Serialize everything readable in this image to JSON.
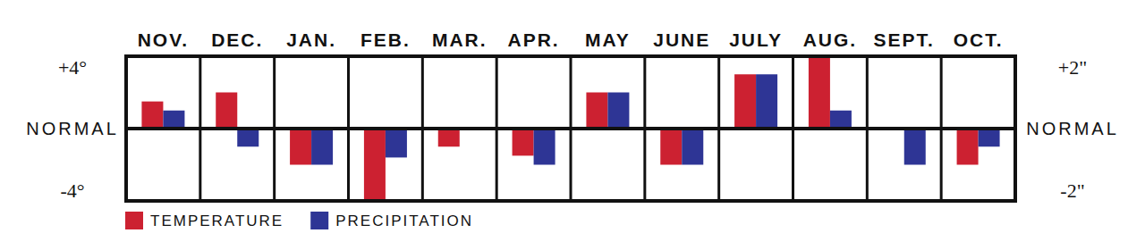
{
  "chart_data": {
    "type": "bar",
    "categories": [
      "NOV.",
      "DEC.",
      "JAN.",
      "FEB.",
      "MAR.",
      "APR.",
      "MAY",
      "JUNE",
      "JULY",
      "AUG.",
      "SEPT.",
      "OCT."
    ],
    "series": [
      {
        "name": "TEMPERATURE",
        "color": "#cc2131",
        "values": [
          1.5,
          2,
          -2,
          -4,
          -1,
          -1.5,
          2,
          -2,
          3,
          4,
          0,
          -2
        ]
      },
      {
        "name": "PRECIPITATION",
        "color": "#2e3595",
        "axis": "y2",
        "values": [
          0.5,
          -0.5,
          -1,
          -0.8,
          0,
          -1,
          1,
          -1,
          1.5,
          0.5,
          -1,
          -0.5
        ]
      }
    ],
    "ylim": [
      -4,
      4
    ],
    "yticks": [
      {
        "value": 4,
        "label": "+4°"
      },
      {
        "value": 0,
        "label": "NORMAL"
      },
      {
        "value": -4,
        "label": "-4°"
      }
    ],
    "y2lim": [
      -2,
      2
    ],
    "y2ticks": [
      {
        "value": 2,
        "label": "+2\""
      },
      {
        "value": 0,
        "label": "NORMAL"
      },
      {
        "value": -2,
        "label": "-2\""
      }
    ],
    "grid": true,
    "legend": "bottom-left"
  }
}
